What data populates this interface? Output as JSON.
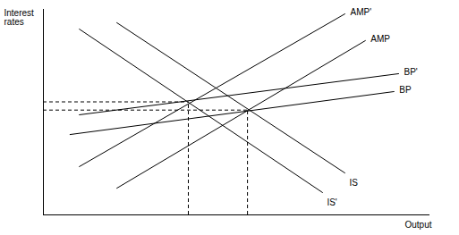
{
  "chart_data": {
    "type": "line",
    "x_label": "Output",
    "y_label": "Interest rates",
    "xlim": [
      0,
      100
    ],
    "ylim": [
      0,
      100
    ],
    "tick_labels": false,
    "grid": false,
    "color": "#000000",
    "series": [
      {
        "name": "AMP'",
        "x": [
          9.3,
          78.0
        ],
        "values": [
          23.5,
          97.8
        ]
      },
      {
        "name": "AMP",
        "x": [
          19.0,
          83.3
        ],
        "values": [
          13.0,
          84.8
        ]
      },
      {
        "name": "BP'",
        "x": [
          9.3,
          91.9
        ],
        "values": [
          48.7,
          68.7
        ]
      },
      {
        "name": "BP",
        "x": [
          6.9,
          90.7
        ],
        "values": [
          39.1,
          60.0
        ]
      },
      {
        "name": "IS",
        "x": [
          19.0,
          78.0
        ],
        "values": [
          93.5,
          20.4
        ]
      },
      {
        "name": "IS'",
        "x": [
          9.3,
          72.2
        ],
        "values": [
          90.4,
          10.9
        ]
      }
    ],
    "intersections": [
      {
        "x": 37.5,
        "y": 55
      },
      {
        "x": 52.8,
        "y": 51
      }
    ]
  }
}
